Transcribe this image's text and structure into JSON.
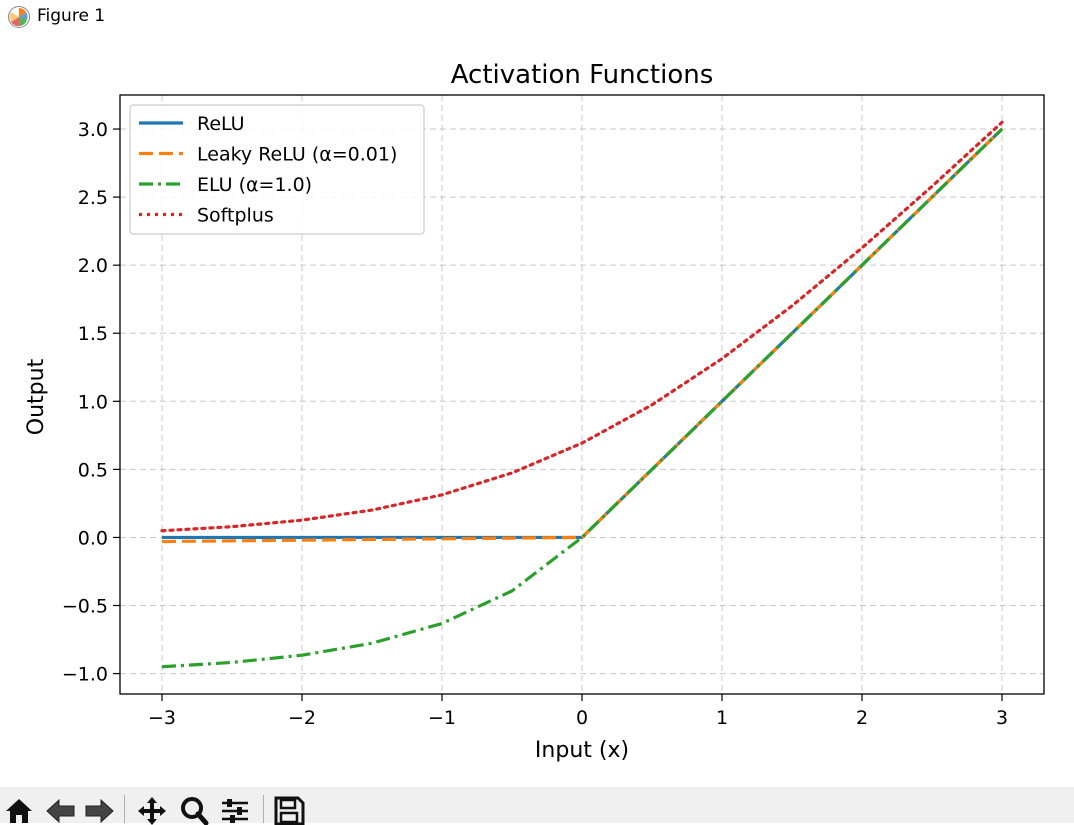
{
  "window": {
    "title": "Figure 1",
    "icon": "matplotlib-logo-icon"
  },
  "toolbar": {
    "buttons": [
      {
        "name": "home",
        "icon": "home-icon"
      },
      {
        "name": "back",
        "icon": "back-arrow-icon"
      },
      {
        "name": "forward",
        "icon": "forward-arrow-icon"
      },
      {
        "name": "pan",
        "icon": "pan-move-icon"
      },
      {
        "name": "zoom",
        "icon": "zoom-magnifier-icon"
      },
      {
        "name": "configure-subplots",
        "icon": "sliders-icon"
      },
      {
        "name": "save",
        "icon": "save-floppy-icon"
      }
    ]
  },
  "chart_data": {
    "type": "line",
    "title": "Activation Functions",
    "xlabel": "Input (x)",
    "ylabel": "Output",
    "xlim": [
      -3.3,
      3.3
    ],
    "ylim": [
      -1.15,
      3.25
    ],
    "xticks": [
      -3,
      -2,
      -1,
      0,
      1,
      2,
      3
    ],
    "xtick_labels": [
      "−3",
      "−2",
      "−1",
      "0",
      "1",
      "2",
      "3"
    ],
    "yticks": [
      -1.0,
      -0.5,
      0.0,
      0.5,
      1.0,
      1.5,
      2.0,
      2.5,
      3.0
    ],
    "ytick_labels": [
      "−1.0",
      "−0.5",
      "0.0",
      "0.5",
      "1.0",
      "1.5",
      "2.0",
      "2.5",
      "3.0"
    ],
    "grid": true,
    "legend_position": "top-left",
    "series": [
      {
        "name": "ReLU",
        "color": "#1f77b4",
        "style": "solid",
        "x": [
          -3,
          -2.5,
          -2,
          -1.5,
          -1,
          -0.5,
          0,
          0.5,
          1,
          1.5,
          2,
          2.5,
          3
        ],
        "y": [
          0,
          0,
          0,
          0,
          0,
          0,
          0,
          0.5,
          1,
          1.5,
          2,
          2.5,
          3
        ]
      },
      {
        "name": "Leaky ReLU (α=0.01)",
        "color": "#ff7f0e",
        "style": "dashed",
        "x": [
          -3,
          -2.5,
          -2,
          -1.5,
          -1,
          -0.5,
          0,
          0.5,
          1,
          1.5,
          2,
          2.5,
          3
        ],
        "y": [
          -0.03,
          -0.025,
          -0.02,
          -0.015,
          -0.01,
          -0.005,
          0,
          0.5,
          1,
          1.5,
          2,
          2.5,
          3
        ]
      },
      {
        "name": "ELU (α=1.0)",
        "color": "#2ca02c",
        "style": "dashdot",
        "x": [
          -3,
          -2.5,
          -2,
          -1.5,
          -1,
          -0.5,
          0,
          0.5,
          1,
          1.5,
          2,
          2.5,
          3
        ],
        "y": [
          -0.95,
          -0.918,
          -0.865,
          -0.777,
          -0.632,
          -0.393,
          0,
          0.5,
          1,
          1.5,
          2,
          2.5,
          3
        ]
      },
      {
        "name": "Softplus",
        "color": "#d62728",
        "style": "dotted",
        "x": [
          -3,
          -2.5,
          -2,
          -1.5,
          -1,
          -0.5,
          0,
          0.5,
          1,
          1.5,
          2,
          2.5,
          3
        ],
        "y": [
          0.049,
          0.079,
          0.127,
          0.201,
          0.313,
          0.474,
          0.693,
          0.974,
          1.313,
          1.701,
          2.127,
          2.579,
          3.049
        ]
      }
    ]
  }
}
